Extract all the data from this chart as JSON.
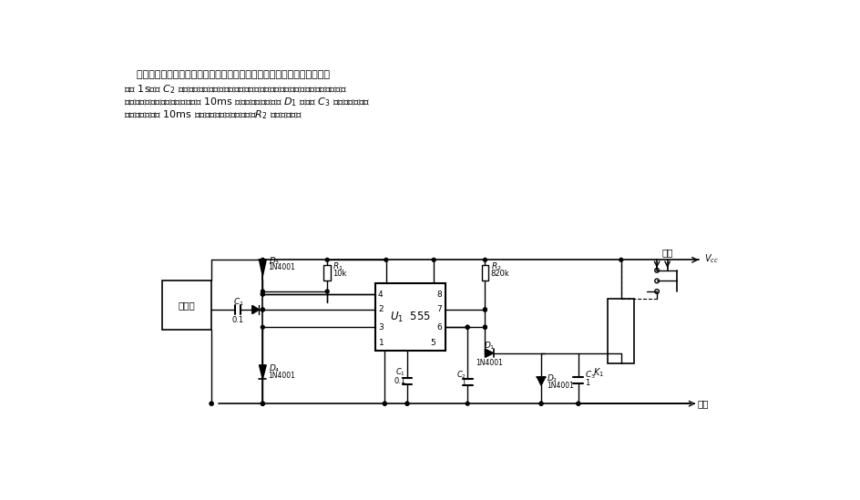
{
  "bg_color": "#ffffff",
  "line_color": "#000000",
  "text_lines": [
    "利用输电线路交流声工作的触摸开关电路。电路的单稳态振荡器的周期调",
    "到约 1s。由 C₂ 引入感应的交流声，从而获得一列触发脉冲。单稳态电路的输出在定时循环",
    "结束到再触发的时间间隔内每秒有 10ms 变为低电平。二极管 D₁ 和电容 C₃ 给继电器提供缓",
    "冲，使之在那些 10ms 脉冲的作用下不致于颤振。R₂ 调节灵敏度。"
  ]
}
